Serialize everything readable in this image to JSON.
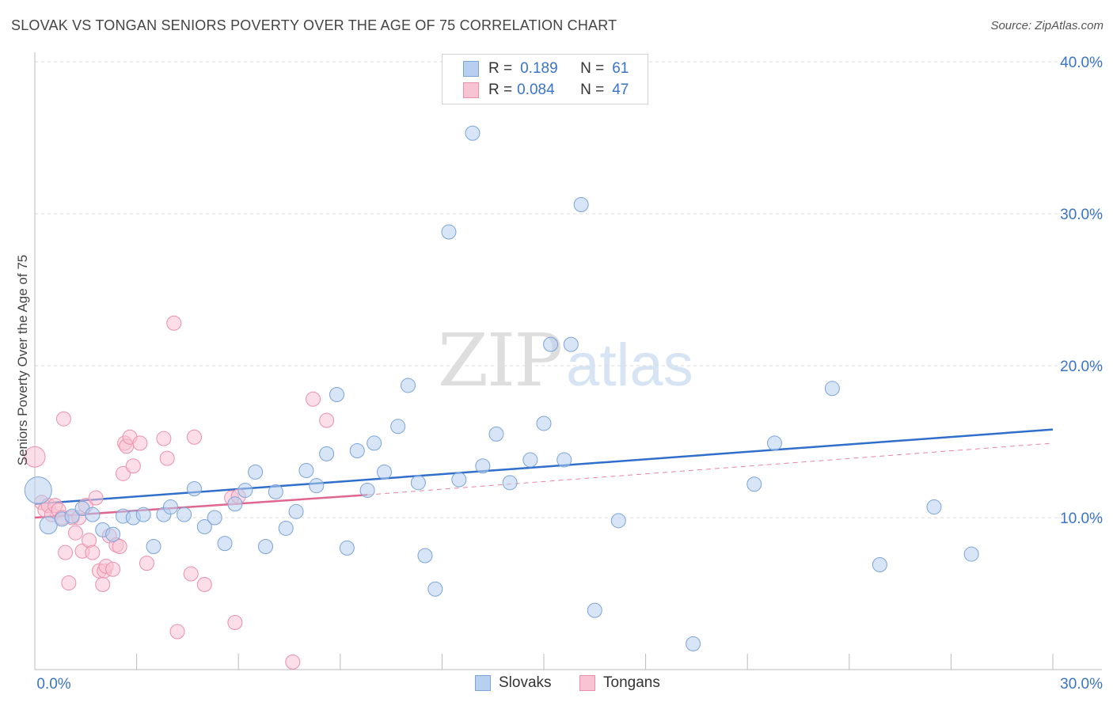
{
  "title": "SLOVAK VS TONGAN SENIORS POVERTY OVER THE AGE OF 75 CORRELATION CHART",
  "source": "Source: ZipAtlas.com",
  "watermark": {
    "zip": "ZIP",
    "atlas": "atlas"
  },
  "legend": {
    "rows": [
      {
        "r_label": "R =",
        "r_value": "0.189",
        "n_label": "N =",
        "n_value": "61"
      },
      {
        "r_label": "R =",
        "r_value": "0.084",
        "n_label": "N =",
        "n_value": "47"
      }
    ]
  },
  "colors": {
    "slovaks_fill": "#b7d0ef",
    "slovaks_stroke": "#7ba4d8",
    "slovaks_line": "#2f6fcb",
    "tongans_fill": "#f8c3d3",
    "tongans_stroke": "#ec8fac",
    "tongans_line": "#e0668f",
    "axis_text": "#3a74c8",
    "grid": "#dddddd"
  },
  "chart_data": {
    "type": "scatter",
    "title": "SLOVAK VS TONGAN SENIORS POVERTY OVER THE AGE OF 75 CORRELATION CHART",
    "xlabel": "",
    "ylabel": "Seniors Poverty Over the Age of 75",
    "xlim": [
      0,
      30
    ],
    "ylim": [
      0,
      40
    ],
    "x_tick_labels": [
      "0.0%",
      "30.0%"
    ],
    "y_ticks": [
      10,
      20,
      30,
      40
    ],
    "y_tick_labels": [
      "10.0%",
      "20.0%",
      "30.0%",
      "40.0%"
    ],
    "grid": true,
    "legend_position": "bottom-center",
    "series": [
      {
        "name": "Slovaks",
        "r": 0.189,
        "n": 61,
        "trend": {
          "x": [
            0,
            30
          ],
          "y": [
            10.9,
            15.8
          ],
          "style": "solid"
        },
        "points": [
          [
            0.1,
            11.8
          ],
          [
            0.4,
            9.5
          ],
          [
            0.8,
            9.9
          ],
          [
            1.1,
            10.1
          ],
          [
            1.4,
            10.6
          ],
          [
            1.7,
            10.2
          ],
          [
            2.0,
            9.2
          ],
          [
            2.3,
            8.9
          ],
          [
            2.6,
            10.1
          ],
          [
            2.9,
            10.0
          ],
          [
            3.2,
            10.2
          ],
          [
            3.5,
            8.1
          ],
          [
            3.8,
            10.2
          ],
          [
            4.0,
            10.7
          ],
          [
            4.4,
            10.2
          ],
          [
            4.7,
            11.9
          ],
          [
            5.0,
            9.4
          ],
          [
            5.3,
            10.0
          ],
          [
            5.6,
            8.3
          ],
          [
            5.9,
            10.9
          ],
          [
            6.2,
            11.8
          ],
          [
            6.5,
            13.0
          ],
          [
            6.8,
            8.1
          ],
          [
            7.1,
            11.7
          ],
          [
            7.4,
            9.3
          ],
          [
            7.7,
            10.4
          ],
          [
            8.0,
            13.1
          ],
          [
            8.3,
            12.1
          ],
          [
            8.6,
            14.2
          ],
          [
            8.9,
            18.1
          ],
          [
            9.2,
            8.0
          ],
          [
            9.5,
            14.4
          ],
          [
            9.8,
            11.8
          ],
          [
            10.0,
            14.9
          ],
          [
            10.3,
            13.0
          ],
          [
            10.7,
            16.0
          ],
          [
            11.0,
            18.7
          ],
          [
            11.3,
            12.3
          ],
          [
            11.5,
            7.5
          ],
          [
            11.8,
            5.3
          ],
          [
            12.2,
            28.8
          ],
          [
            12.5,
            12.5
          ],
          [
            12.9,
            35.3
          ],
          [
            13.2,
            13.4
          ],
          [
            13.6,
            15.5
          ],
          [
            14.0,
            12.3
          ],
          [
            14.6,
            13.8
          ],
          [
            15.0,
            16.2
          ],
          [
            15.2,
            21.4
          ],
          [
            15.6,
            13.8
          ],
          [
            15.8,
            21.4
          ],
          [
            16.1,
            30.6
          ],
          [
            16.5,
            3.9
          ],
          [
            17.2,
            9.8
          ],
          [
            19.4,
            1.7
          ],
          [
            21.2,
            12.2
          ],
          [
            21.8,
            14.9
          ],
          [
            23.5,
            18.5
          ],
          [
            24.9,
            6.9
          ],
          [
            26.5,
            10.7
          ],
          [
            27.6,
            7.6
          ]
        ]
      },
      {
        "name": "Tongans",
        "r": 0.084,
        "n": 47,
        "trend": {
          "x": [
            0,
            9.8
          ],
          "y": [
            10.0,
            11.5
          ],
          "style": "solid"
        },
        "trend_extension": {
          "x": [
            9.8,
            30
          ],
          "y": [
            11.5,
            14.9
          ],
          "style": "dashed"
        },
        "points": [
          [
            0.0,
            14.0
          ],
          [
            0.2,
            11.0
          ],
          [
            0.3,
            10.5
          ],
          [
            0.4,
            10.8
          ],
          [
            0.5,
            10.2
          ],
          [
            0.6,
            10.8
          ],
          [
            0.7,
            10.5
          ],
          [
            0.8,
            10.0
          ],
          [
            0.85,
            16.5
          ],
          [
            0.9,
            7.7
          ],
          [
            1.0,
            5.7
          ],
          [
            1.1,
            10.0
          ],
          [
            1.2,
            9.0
          ],
          [
            1.3,
            10.0
          ],
          [
            1.4,
            7.8
          ],
          [
            1.5,
            10.8
          ],
          [
            1.6,
            8.5
          ],
          [
            1.7,
            7.7
          ],
          [
            1.8,
            11.3
          ],
          [
            1.9,
            6.5
          ],
          [
            2.0,
            5.6
          ],
          [
            2.05,
            6.5
          ],
          [
            2.1,
            6.8
          ],
          [
            2.2,
            8.8
          ],
          [
            2.3,
            6.6
          ],
          [
            2.4,
            8.2
          ],
          [
            2.5,
            8.1
          ],
          [
            2.6,
            12.9
          ],
          [
            2.65,
            14.9
          ],
          [
            2.7,
            14.7
          ],
          [
            2.8,
            15.3
          ],
          [
            2.9,
            13.4
          ],
          [
            3.1,
            14.9
          ],
          [
            3.3,
            7.0
          ],
          [
            3.8,
            15.2
          ],
          [
            3.9,
            13.9
          ],
          [
            4.1,
            22.8
          ],
          [
            4.2,
            2.5
          ],
          [
            4.6,
            6.3
          ],
          [
            4.7,
            15.3
          ],
          [
            5.0,
            5.6
          ],
          [
            5.8,
            11.3
          ],
          [
            5.9,
            3.1
          ],
          [
            6.0,
            11.4
          ],
          [
            7.6,
            0.5
          ],
          [
            8.2,
            17.8
          ],
          [
            8.6,
            16.4
          ]
        ]
      }
    ]
  },
  "bottom_legend": {
    "slovaks": "Slovaks",
    "tongans": "Tongans"
  }
}
